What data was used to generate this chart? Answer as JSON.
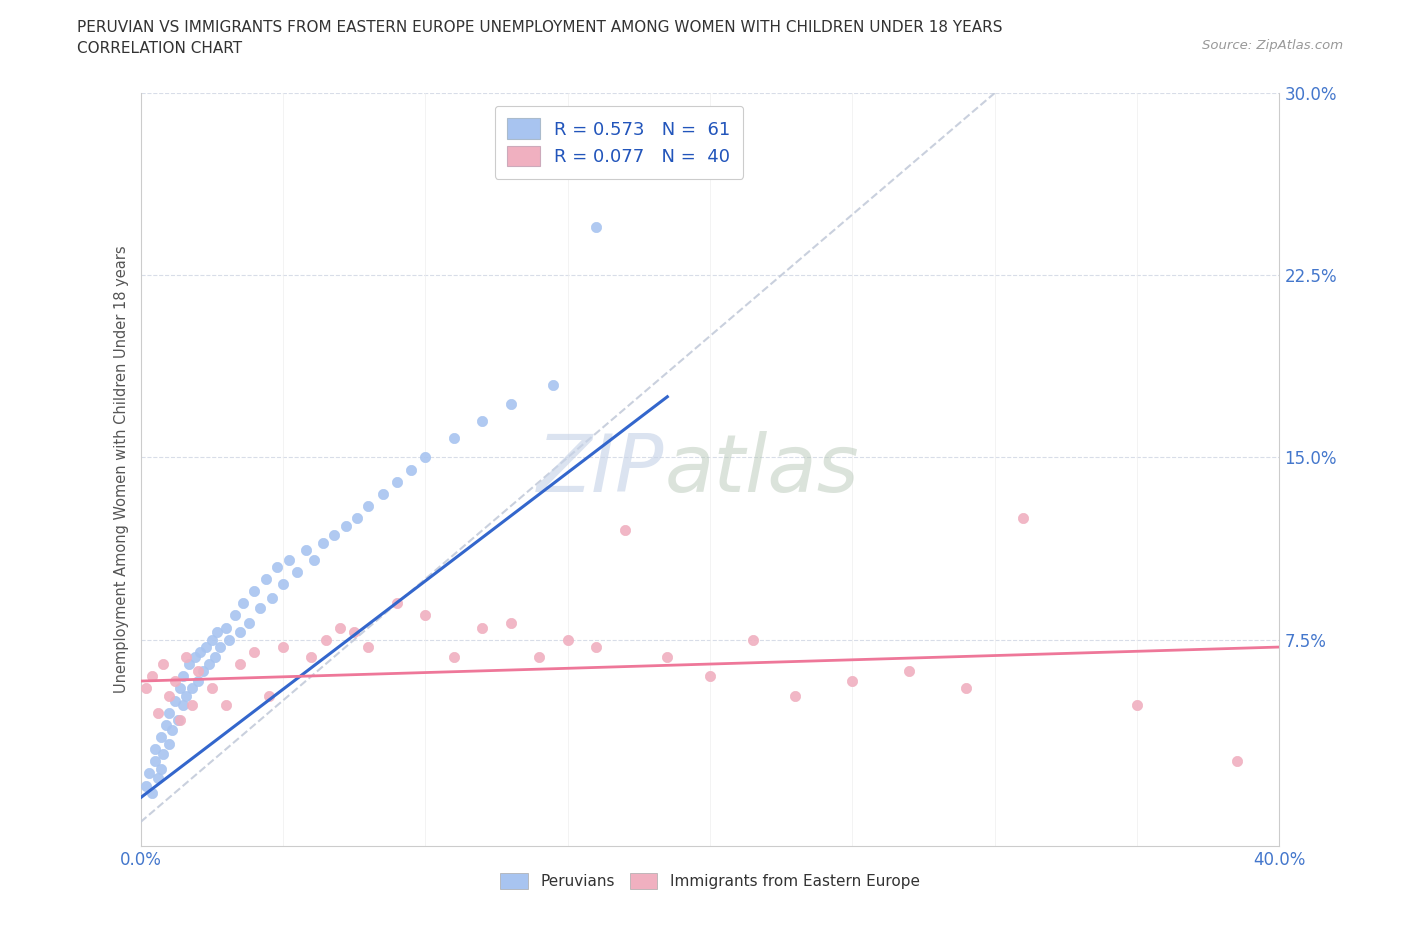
{
  "title_line1": "PERUVIAN VS IMMIGRANTS FROM EASTERN EUROPE UNEMPLOYMENT AMONG WOMEN WITH CHILDREN UNDER 18 YEARS",
  "title_line2": "CORRELATION CHART",
  "source": "Source: ZipAtlas.com",
  "ylabel": "Unemployment Among Women with Children Under 18 years",
  "xmin": 0.0,
  "xmax": 0.4,
  "ymin": -0.01,
  "ymax": 0.3,
  "legend_r1": "R = 0.573   N =  61",
  "legend_r2": "R = 0.077   N =  40",
  "peruvian_color": "#a8c4f0",
  "eastern_europe_color": "#f0b0c0",
  "peruvian_line_color": "#3366cc",
  "eastern_europe_line_color": "#ee7799",
  "diagonal_color": "#c0c8d8",
  "watermark_zip": "ZIP",
  "watermark_atlas": "atlas",
  "peru_x": [
    0.002,
    0.003,
    0.004,
    0.005,
    0.005,
    0.006,
    0.007,
    0.007,
    0.008,
    0.009,
    0.01,
    0.01,
    0.011,
    0.012,
    0.013,
    0.014,
    0.015,
    0.015,
    0.016,
    0.017,
    0.018,
    0.019,
    0.02,
    0.021,
    0.022,
    0.023,
    0.024,
    0.025,
    0.026,
    0.027,
    0.028,
    0.03,
    0.031,
    0.033,
    0.035,
    0.036,
    0.038,
    0.04,
    0.042,
    0.044,
    0.046,
    0.048,
    0.05,
    0.052,
    0.055,
    0.058,
    0.061,
    0.064,
    0.068,
    0.072,
    0.076,
    0.08,
    0.085,
    0.09,
    0.095,
    0.1,
    0.11,
    0.12,
    0.13,
    0.145,
    0.16
  ],
  "peru_y": [
    0.015,
    0.02,
    0.012,
    0.025,
    0.03,
    0.018,
    0.022,
    0.035,
    0.028,
    0.04,
    0.032,
    0.045,
    0.038,
    0.05,
    0.042,
    0.055,
    0.048,
    0.06,
    0.052,
    0.065,
    0.055,
    0.068,
    0.058,
    0.07,
    0.062,
    0.072,
    0.065,
    0.075,
    0.068,
    0.078,
    0.072,
    0.08,
    0.075,
    0.085,
    0.078,
    0.09,
    0.082,
    0.095,
    0.088,
    0.1,
    0.092,
    0.105,
    0.098,
    0.108,
    0.103,
    0.112,
    0.108,
    0.115,
    0.118,
    0.122,
    0.125,
    0.13,
    0.135,
    0.14,
    0.145,
    0.15,
    0.158,
    0.165,
    0.172,
    0.18,
    0.245
  ],
  "ee_x": [
    0.002,
    0.004,
    0.006,
    0.008,
    0.01,
    0.012,
    0.014,
    0.016,
    0.018,
    0.02,
    0.025,
    0.03,
    0.035,
    0.04,
    0.045,
    0.05,
    0.06,
    0.065,
    0.07,
    0.075,
    0.08,
    0.09,
    0.1,
    0.11,
    0.12,
    0.13,
    0.14,
    0.15,
    0.16,
    0.17,
    0.185,
    0.2,
    0.215,
    0.23,
    0.25,
    0.27,
    0.29,
    0.31,
    0.35,
    0.385
  ],
  "ee_y": [
    0.055,
    0.06,
    0.045,
    0.065,
    0.052,
    0.058,
    0.042,
    0.068,
    0.048,
    0.062,
    0.055,
    0.048,
    0.065,
    0.07,
    0.052,
    0.072,
    0.068,
    0.075,
    0.08,
    0.078,
    0.072,
    0.09,
    0.085,
    0.068,
    0.08,
    0.082,
    0.068,
    0.075,
    0.072,
    0.12,
    0.068,
    0.06,
    0.075,
    0.052,
    0.058,
    0.062,
    0.055,
    0.125,
    0.048,
    0.025
  ],
  "peru_line_x": [
    0.0,
    0.185
  ],
  "peru_line_y": [
    0.01,
    0.175
  ],
  "ee_line_x": [
    0.0,
    0.4
  ],
  "ee_line_y": [
    0.058,
    0.072
  ]
}
